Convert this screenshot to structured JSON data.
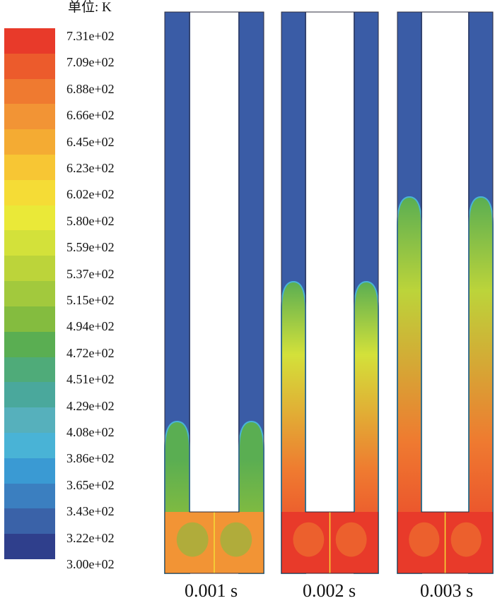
{
  "legend": {
    "unit_label": "单位: K",
    "ticks": [
      "7.31e+02",
      "7.09e+02",
      "6.88e+02",
      "6.66e+02",
      "6.45e+02",
      "6.23e+02",
      "6.02e+02",
      "5.80e+02",
      "5.59e+02",
      "5.37e+02",
      "5.15e+02",
      "4.94e+02",
      "4.72e+02",
      "4.51e+02",
      "4.29e+02",
      "4.08e+02",
      "3.86e+02",
      "3.65e+02",
      "3.43e+02",
      "3.22e+02",
      "3.00e+02"
    ],
    "colors": [
      "#e83a2a",
      "#ec5b2c",
      "#ef7a30",
      "#f29435",
      "#f4ab33",
      "#f7c634",
      "#f5dc36",
      "#eae938",
      "#d3e13a",
      "#bcd43a",
      "#a2c93d",
      "#84bc3f",
      "#5aae52",
      "#4fab79",
      "#4aa89c",
      "#56b0bc",
      "#49b3d6",
      "#3a9ad3",
      "#3b7fc0",
      "#3a62a8",
      "#2f3f8c"
    ]
  },
  "panels": [
    {
      "time_label": "0.001 s",
      "hot_top_fraction": 0.27,
      "core_color": "#f29435",
      "mid_color": "#84bc3f",
      "upper_color": "#5aae52"
    },
    {
      "time_label": "0.002 s",
      "hot_top_fraction": 0.52,
      "core_color": "#e83a2a",
      "mid_color": "#ef7a30",
      "upper_color": "#d3e13a"
    },
    {
      "time_label": "0.003 s",
      "hot_top_fraction": 0.67,
      "core_color": "#e83a2a",
      "mid_color": "#ef7a30",
      "upper_color": "#bcd43a"
    }
  ],
  "colors": {
    "cold": "#3a5ca6",
    "outline": "#2c2c3e"
  }
}
